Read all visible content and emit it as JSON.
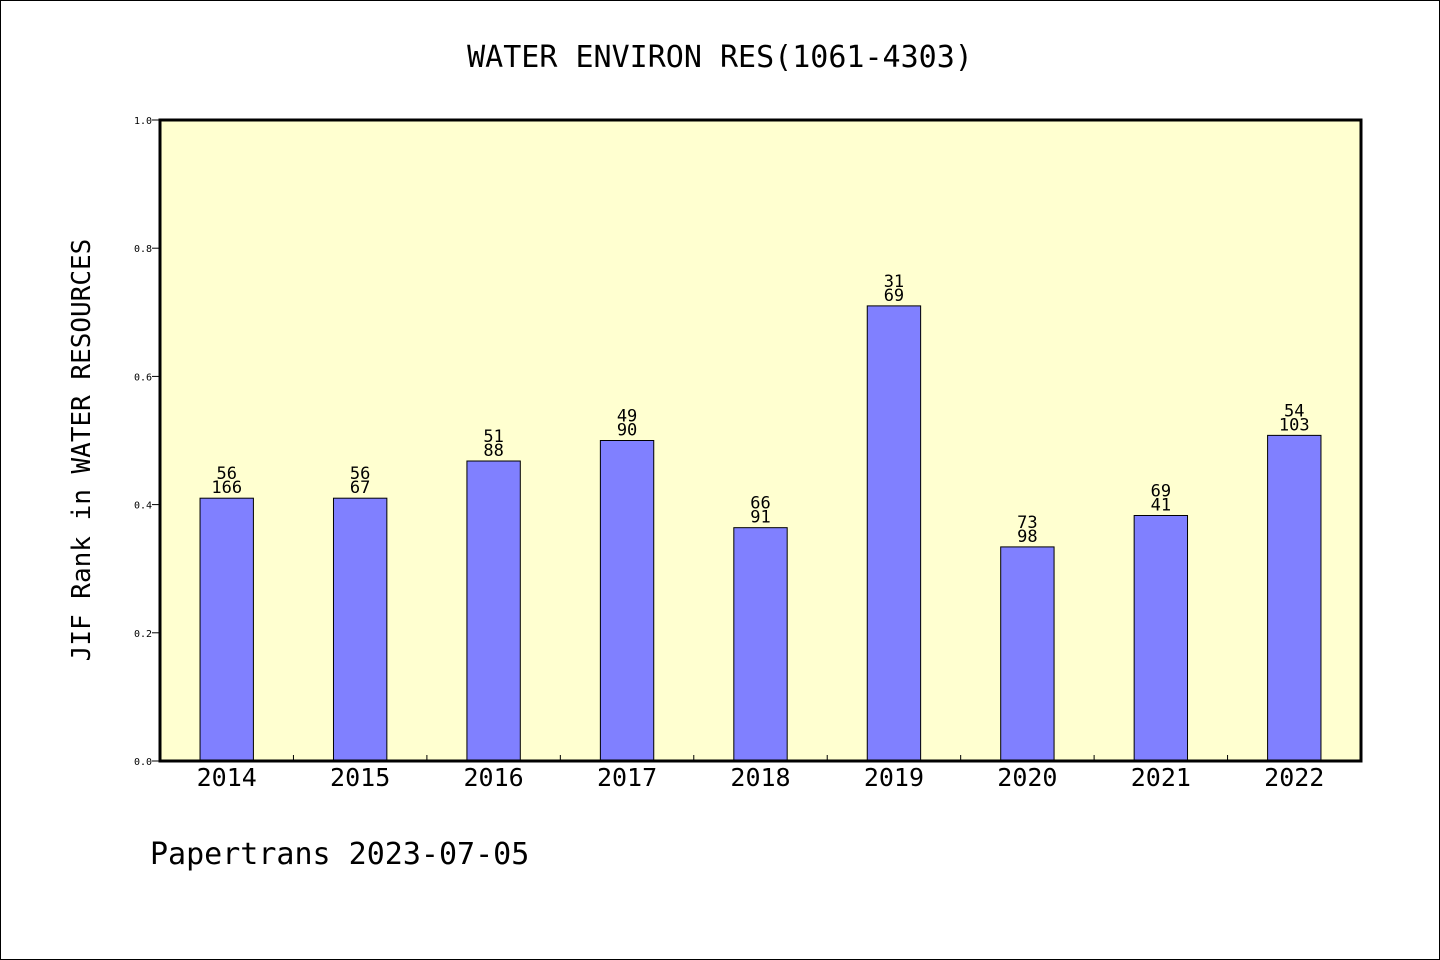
{
  "chart_data": {
    "type": "bar",
    "title": "WATER ENVIRON RES(1061-4303)",
    "xlabel": "",
    "ylabel": "JIF Rank in WATER RESOURCES",
    "ylim": [
      0,
      1.0
    ],
    "yticks": [
      "0.0",
      "0.2",
      "0.4",
      "0.6",
      "0.8",
      "1.0"
    ],
    "categories": [
      "2014",
      "2015",
      "2016",
      "2017",
      "2018",
      "2019",
      "2020",
      "2021",
      "2022"
    ],
    "values": [
      0.41,
      0.41,
      0.468,
      0.5,
      0.364,
      0.71,
      0.334,
      0.383,
      0.508
    ],
    "bar_labels": [
      {
        "rank": "56",
        "total": "166"
      },
      {
        "rank": "56",
        "total": "67"
      },
      {
        "rank": "51",
        "total": "88"
      },
      {
        "rank": "49",
        "total": "90"
      },
      {
        "rank": "66",
        "total": "91"
      },
      {
        "rank": "31",
        "total": "69"
      },
      {
        "rank": "73",
        "total": "98"
      },
      {
        "rank": "69",
        "total": "41"
      },
      {
        "rank": "54",
        "total": "103"
      }
    ],
    "grid": false,
    "legend": "none",
    "colors": {
      "plot_background": "#ffffd0",
      "bar_fill": "#8080ff",
      "bar_stroke": "#000000"
    }
  },
  "footer": {
    "text": "Papertrans 2023-07-05"
  }
}
